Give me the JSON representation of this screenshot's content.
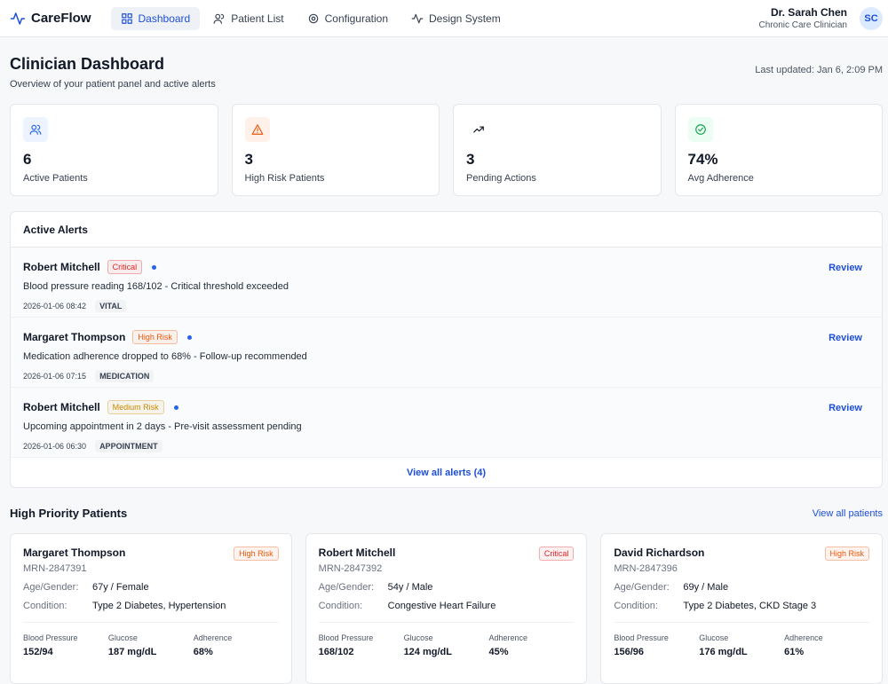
{
  "nav": {
    "brand": "CareFlow",
    "items": [
      "Dashboard",
      "Patient List",
      "Configuration",
      "Design System"
    ],
    "user_name": "Dr. Sarah Chen",
    "user_role": "Chronic Care Clinician",
    "avatar": "SC"
  },
  "header": {
    "title": "Clinician Dashboard",
    "subtitle": "Overview of your patient panel and active alerts",
    "updated": "Last updated: Jan 6, 2:09 PM"
  },
  "stats": [
    {
      "value": "6",
      "label": "Active Patients"
    },
    {
      "value": "3",
      "label": "High Risk Patients"
    },
    {
      "value": "3",
      "label": "Pending Actions"
    },
    {
      "value": "74%",
      "label": "Avg Adherence"
    }
  ],
  "alerts": {
    "title": "Active Alerts",
    "items": [
      {
        "name": "Robert Mitchell",
        "badge": "Critical",
        "badge_color": "#dc2626",
        "message": "Blood pressure reading 168/102 - Critical threshold exceeded",
        "time": "2026-01-06 08:42",
        "tag": "VITAL",
        "action": "Review"
      },
      {
        "name": "Margaret Thompson",
        "badge": "High Risk",
        "badge_color": "#ea580c",
        "message": "Medication adherence dropped to 68% - Follow-up recommended",
        "time": "2026-01-06 07:15",
        "tag": "MEDICATION",
        "action": "Review"
      },
      {
        "name": "Robert Mitchell",
        "badge": "Medium Risk",
        "badge_color": "#ca8a04",
        "message": "Upcoming appointment in 2 days - Pre-visit assessment pending",
        "time": "2026-01-06 06:30",
        "tag": "APPOINTMENT",
        "action": "Review"
      }
    ],
    "footer": "View all alerts (4)"
  },
  "patients": {
    "title": "High Priority Patients",
    "link": "View all patients",
    "cards": [
      {
        "name": "Margaret Thompson",
        "badge": "High Risk",
        "badge_color": "#ea580c",
        "mrn": "MRN-2847391",
        "fields": [
          {
            "label": "Age/Gender:",
            "value": "67y / Female"
          },
          {
            "label": "Condition:",
            "value": "Type 2 Diabetes, Hypertension"
          }
        ],
        "metrics": [
          {
            "label": "Blood Pressure",
            "value": "152/94"
          },
          {
            "label": "Glucose",
            "value": "187 mg/dL"
          },
          {
            "label": "Adherence",
            "value": "68%"
          }
        ]
      },
      {
        "name": "Robert Mitchell",
        "badge": "Critical",
        "badge_color": "#dc2626",
        "mrn": "MRN-2847392",
        "fields": [
          {
            "label": "Age/Gender:",
            "value": "54y / Male"
          },
          {
            "label": "Condition:",
            "value": "Congestive Heart Failure"
          }
        ],
        "metrics": [
          {
            "label": "Blood Pressure",
            "value": "168/102"
          },
          {
            "label": "Glucose",
            "value": "124 mg/dL"
          },
          {
            "label": "Adherence",
            "value": "45%"
          }
        ]
      },
      {
        "name": "David Richardson",
        "badge": "High Risk",
        "badge_color": "#ea580c",
        "mrn": "MRN-2847396",
        "fields": [
          {
            "label": "Age/Gender:",
            "value": "69y / Male"
          },
          {
            "label": "Condition:",
            "value": "Type 2 Diabetes, CKD Stage 3"
          }
        ],
        "metrics": [
          {
            "label": "Blood Pressure",
            "value": "156/96"
          },
          {
            "label": "Glucose",
            "value": "176 mg/dL"
          },
          {
            "label": "Adherence",
            "value": "61%"
          }
        ]
      }
    ]
  }
}
